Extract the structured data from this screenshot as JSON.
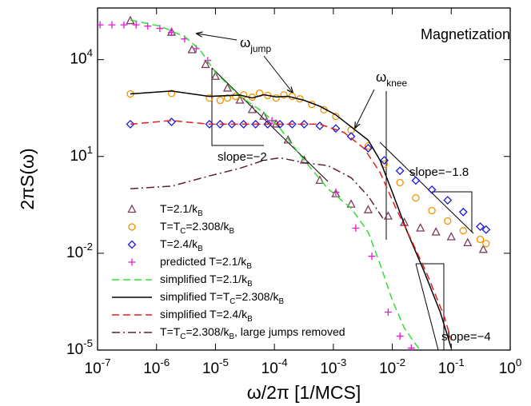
{
  "chart_data": {
    "type": "line",
    "xlabel": "ω/2π [1/MCS]",
    "ylabel": "2πS(ω)",
    "xscale": "log",
    "yscale": "log",
    "xlim": [
      1e-07,
      1
    ],
    "ylim": [
      1e-05,
      400000
    ],
    "xticks": [
      {
        "value": 1e-07,
        "label": "10^{-7}"
      },
      {
        "value": 1e-06,
        "label": "10^{-6}"
      },
      {
        "value": 1e-05,
        "label": "10^{-5}"
      },
      {
        "value": 0.0001,
        "label": "10^{-4}"
      },
      {
        "value": 0.001,
        "label": "10^{-3}"
      },
      {
        "value": 0.01,
        "label": "10^{-2}"
      },
      {
        "value": 0.1,
        "label": "10^{-1}"
      },
      {
        "value": 1,
        "label": "10^{0}"
      }
    ],
    "yticks": [
      {
        "value": 1e-05,
        "label": "10^{-5}"
      },
      {
        "value": 0.01,
        "label": "10^{-2}"
      },
      {
        "value": 10,
        "label": "10^{1}"
      },
      {
        "value": 10000,
        "label": "10^{4}"
      }
    ],
    "legend": "lower left",
    "annotations": [
      "Magnetization",
      "ω_{jump}",
      "ω_{knee}",
      "slope=−2",
      "slope=−1.8",
      "slope=−4"
    ],
    "series": [
      {
        "name": "T=2.1/k_{B}",
        "color": "#7b3b5e",
        "marker": "^",
        "line": "none",
        "x": [
          3.6e-07,
          1.8e-06,
          4e-06,
          6.8e-06,
          1e-05,
          1.6e-05,
          2.6e-05,
          4.2e-05,
          6.6e-05,
          0.000107,
          0.00017,
          0.00032,
          0.00059,
          0.0011,
          0.002,
          0.0039,
          0.0085,
          0.016,
          0.03,
          0.055,
          0.1,
          0.19,
          0.35
        ],
        "values": [
          160000,
          70000,
          20000,
          7000,
          3000,
          1300,
          550,
          280,
          175,
          100,
          32,
          7.6,
          1.8,
          0.69,
          0.33,
          0.22,
          0.14,
          0.089,
          0.06,
          0.045,
          0.032,
          0.021,
          0.013
        ]
      },
      {
        "name": "T=T_{C}=2.308/k_{B}",
        "color": "#f39200",
        "marker": "o",
        "line": "none",
        "x": [
          3.6e-07,
          1.8e-06,
          7.9e-06,
          1.2e-05,
          1.6e-05,
          2.2e-05,
          3e-05,
          4.2e-05,
          5.6e-05,
          7.7e-05,
          0.000107,
          0.000145,
          0.0002,
          0.00027,
          0.00043,
          0.00069,
          0.0011,
          0.002,
          0.0039,
          0.0073,
          0.0135,
          0.025,
          0.047,
          0.087,
          0.16,
          0.31,
          0.39
        ],
        "values": [
          870,
          900,
          650,
          550,
          650,
          730,
          810,
          690,
          910,
          780,
          650,
          810,
          730,
          610,
          410,
          280,
          175,
          66,
          21,
          5.8,
          1.55,
          0.52,
          0.21,
          0.1,
          0.05,
          0.027,
          0.02
        ]
      },
      {
        "name": "T=2.4/k_{B}",
        "color": "#1a1adb",
        "marker": "D",
        "line": "none",
        "x": [
          3.6e-07,
          1.8e-06,
          7.9e-06,
          1.2e-05,
          1.9e-05,
          3e-05,
          4.8e-05,
          7.7e-05,
          0.000124,
          0.0002,
          0.00032,
          0.00059,
          0.0011,
          0.002,
          0.0039,
          0.0073,
          0.0135,
          0.025,
          0.047,
          0.087,
          0.16,
          0.31,
          0.39
        ],
        "values": [
          100,
          118,
          100,
          100,
          100,
          100,
          100,
          100,
          100,
          100,
          100,
          89,
          74,
          42,
          18,
          7.6,
          3.6,
          1.8,
          0.93,
          0.44,
          0.19,
          0.067,
          0.054
        ]
      },
      {
        "name": "predicted T=2.1/k_{B}",
        "color": "#e01cd0",
        "marker": "+",
        "line": "none",
        "x": [
          1.1e-07,
          1.75e-07,
          2.8e-07,
          4.5e-07,
          7.1e-07,
          1.14e-06,
          1.8e-06,
          3e-06,
          4.7e-06,
          7.4e-06,
          9.1e-05,
          0.0011,
          0.0024,
          0.0045,
          0.0085,
          0.0135,
          0.021
        ],
        "values": [
          120000,
          120000,
          120000,
          120000,
          110000,
          93000,
          70000,
          44000,
          22000,
          9500,
          130,
          0.78,
          0.06,
          0.0081,
          0.00015,
          2.7e-05,
          1.15e-05
        ]
      },
      {
        "name": "simplified T=2.1/k_{B}",
        "color": "#33dd33",
        "marker": "none",
        "line": "--",
        "x": [
          3.6e-07,
          1.14e-06,
          3e-06,
          5.5e-06,
          1e-05,
          2.6e-05,
          6.6e-05,
          0.000124,
          0.00032,
          0.00081,
          0.002,
          0.0039,
          0.0062,
          0.01,
          0.016,
          0.025,
          0.035
        ],
        "values": [
          170000,
          110000,
          52000,
          20000,
          4000,
          730,
          230,
          75,
          7.6,
          1.0,
          0.25,
          0.045,
          0.0046,
          0.00035,
          4.8e-05,
          1.5e-05,
          6.6e-06
        ]
      },
      {
        "name": "simplified T=T_{C}=2.308/k_{B}",
        "color": "#000000",
        "marker": "none",
        "line": "-",
        "x": [
          3.6e-07,
          1.8e-06,
          7.9e-06,
          2.6e-05,
          4.2e-05,
          6.6e-05,
          0.000107,
          0.00017,
          0.00032,
          0.00059,
          0.0011,
          0.002,
          0.0039,
          0.0062,
          0.01,
          0.018,
          0.035,
          0.065,
          0.1
        ],
        "values": [
          870,
          1070,
          730,
          800,
          650,
          820,
          700,
          730,
          550,
          360,
          195,
          83,
          32,
          7.6,
          0.78,
          0.045,
          0.0026,
          0.00015,
          1.15e-05
        ]
      },
      {
        "name": "simplified T=2.4/k_{B}",
        "color": "#e02020",
        "marker": "none",
        "line": "--",
        "x": [
          3.6e-07,
          1.8e-06,
          7.9e-06,
          0.00059,
          0.0015,
          0.0033,
          0.0062,
          0.0115,
          0.021,
          0.04,
          0.076,
          0.1
        ],
        "values": [
          100,
          130,
          100,
          100,
          56,
          18,
          3.2,
          0.25,
          0.026,
          0.002,
          0.00011,
          2e-05
        ]
      },
      {
        "name": "T=T_{C}=2.308/k_{B}, large jumps removed",
        "color": "#5c1f3c",
        "marker": "none",
        "line": "-.",
        "x": [
          3.6e-07,
          1.8e-06,
          7.9e-06,
          2.6e-05,
          6.6e-05,
          0.000124,
          0.00032,
          0.00081,
          0.002,
          0.0039,
          0.0073
        ],
        "values": [
          1.0,
          1.2,
          2.5,
          4.3,
          7.6,
          9.1,
          6.4,
          5.2,
          2.2,
          0.59,
          0.105
        ]
      }
    ]
  }
}
